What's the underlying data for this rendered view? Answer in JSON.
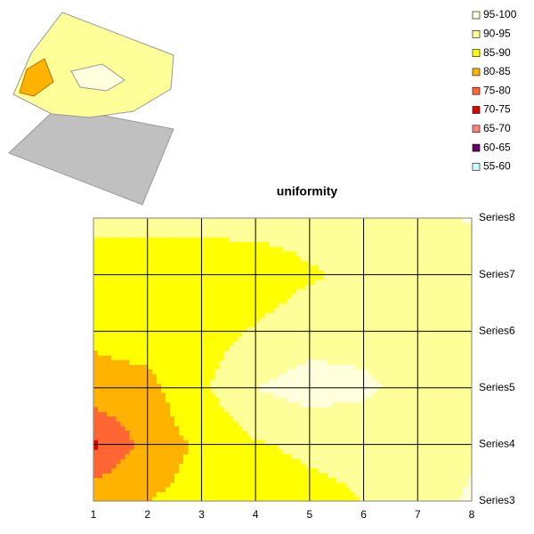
{
  "chart_data": {
    "type": "contour",
    "title": "uniformity",
    "x": [
      1,
      2,
      3,
      4,
      5,
      6,
      7,
      8
    ],
    "xlim": [
      1,
      8
    ],
    "xticks": [
      1,
      2,
      3,
      4,
      5,
      6,
      7,
      8
    ],
    "categories": [
      "Series3",
      "Series4",
      "Series5",
      "Series6",
      "Series7",
      "Series8"
    ],
    "z": [
      [
        84,
        85,
        86.5,
        87.5,
        88.5,
        90,
        92,
        96
      ],
      [
        74,
        82,
        86,
        89.5,
        91,
        91.5,
        92,
        94
      ],
      [
        83,
        83.5,
        89,
        95,
        97,
        96,
        93,
        92
      ],
      [
        86,
        87.5,
        88,
        90.5,
        93,
        93,
        92,
        92
      ],
      [
        88,
        88,
        88,
        87,
        89.5,
        91,
        92,
        92
      ],
      [
        91,
        91,
        91,
        92,
        92,
        92,
        93,
        95.5
      ]
    ],
    "bands": [
      {
        "label": "95-100",
        "min": 95,
        "max": 100,
        "color": "#ffffdd"
      },
      {
        "label": "90-95",
        "min": 90,
        "max": 95,
        "color": "#ffff99"
      },
      {
        "label": "85-90",
        "min": 85,
        "max": 90,
        "color": "#ffff00"
      },
      {
        "label": "80-85",
        "min": 80,
        "max": 85,
        "color": "#ffb300"
      },
      {
        "label": "75-80",
        "min": 75,
        "max": 80,
        "color": "#ff6633"
      },
      {
        "label": "70-75",
        "min": 70,
        "max": 75,
        "color": "#e00000"
      },
      {
        "label": "65-70",
        "min": 65,
        "max": 70,
        "color": "#ff8080"
      },
      {
        "label": "60-65",
        "min": 60,
        "max": 65,
        "color": "#660066"
      },
      {
        "label": "55-60",
        "min": 55,
        "max": 60,
        "color": "#ccffff"
      }
    ]
  }
}
